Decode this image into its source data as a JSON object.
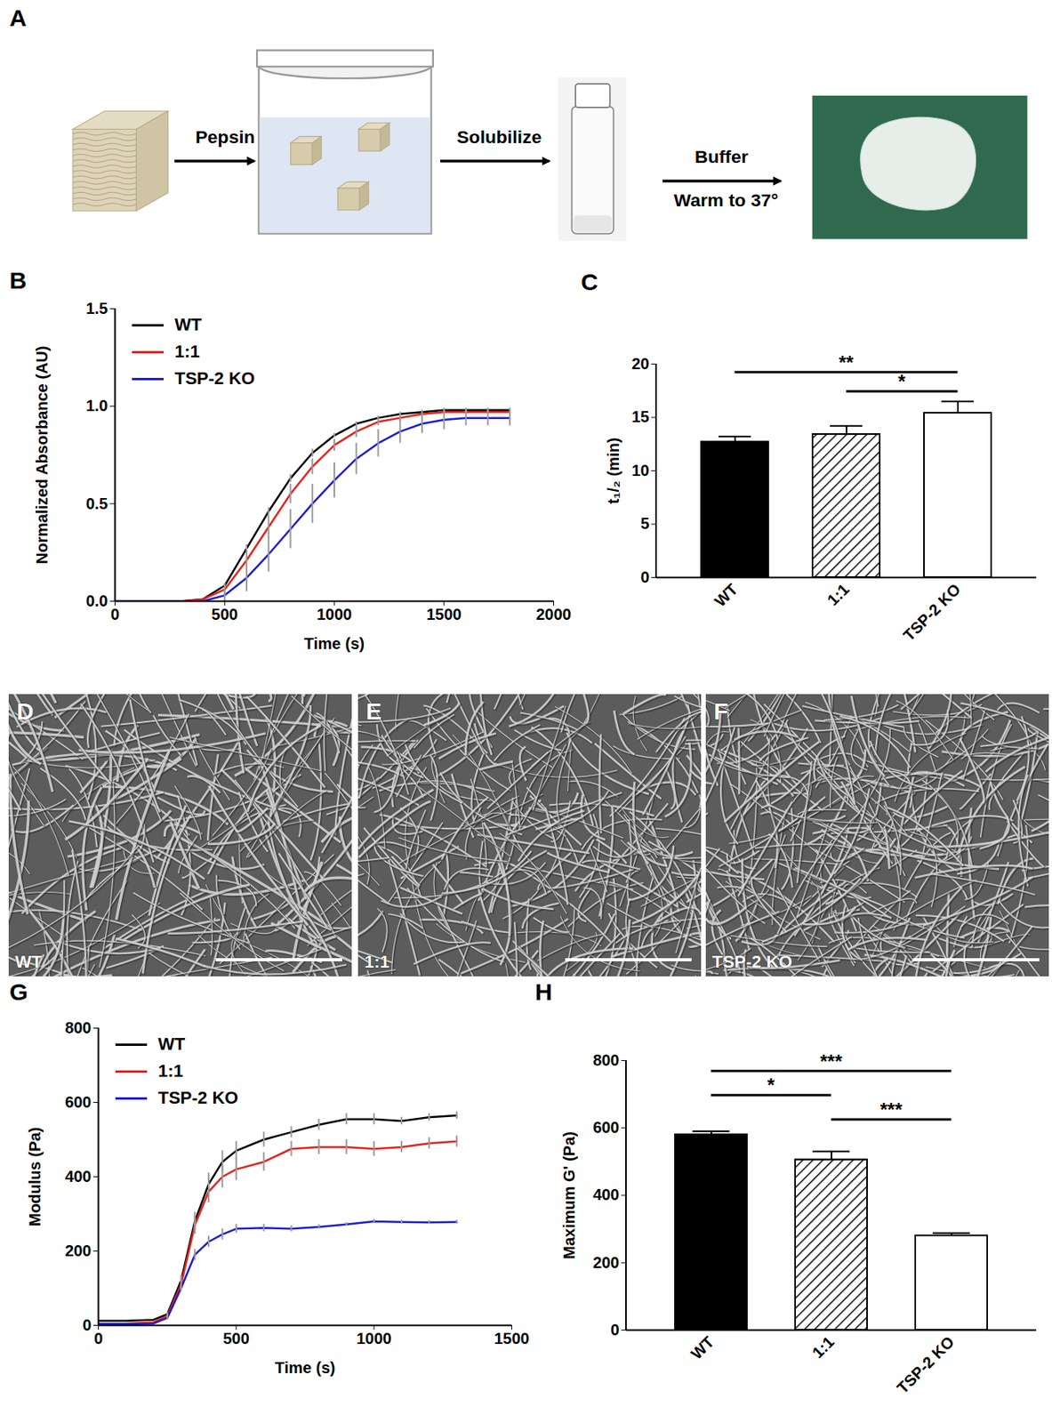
{
  "schematic": {
    "panel": "A",
    "steps": [
      {
        "above": "Pepsin"
      },
      {
        "above": "Solubilize"
      },
      {
        "above": "Buffer",
        "below": "Warm to 37°"
      }
    ]
  },
  "chart_data": [
    {
      "panel": "B",
      "type": "line",
      "x_label": "Time (s)",
      "y_label": "Normalized Absorbance (AU)",
      "x": [
        0,
        100,
        200,
        300,
        400,
        500,
        600,
        700,
        800,
        900,
        1000,
        1100,
        1200,
        1300,
        1400,
        1500,
        1600,
        1700,
        1800
      ],
      "series": [
        {
          "name": "WT",
          "color": "#000000",
          "values": [
            0,
            0,
            0,
            0,
            0.01,
            0.08,
            0.27,
            0.46,
            0.63,
            0.76,
            0.85,
            0.91,
            0.94,
            0.96,
            0.97,
            0.98,
            0.98,
            0.98,
            0.98
          ],
          "errors": [
            0,
            0,
            0,
            0,
            0,
            0.01,
            0.02,
            0.02,
            0.02,
            0.02,
            0.01,
            0.01,
            0.01,
            0.01,
            0.01,
            0.01,
            0.01,
            0.01,
            0.01
          ]
        },
        {
          "name": "1:1",
          "color": "#e8221b",
          "values": [
            0,
            0,
            0,
            0,
            0.01,
            0.06,
            0.21,
            0.38,
            0.55,
            0.69,
            0.8,
            0.87,
            0.92,
            0.94,
            0.96,
            0.97,
            0.97,
            0.97,
            0.97
          ],
          "errors": [
            0,
            0,
            0,
            0,
            0,
            0.03,
            0.06,
            0.06,
            0.05,
            0.04,
            0.03,
            0.03,
            0.02,
            0.02,
            0.01,
            0.01,
            0.01,
            0.01,
            0.01
          ]
        },
        {
          "name": "TSP-2 KO",
          "color": "#1c1cd6",
          "values": [
            0,
            0,
            0,
            0,
            0,
            0.03,
            0.12,
            0.24,
            0.37,
            0.5,
            0.62,
            0.73,
            0.81,
            0.87,
            0.91,
            0.93,
            0.94,
            0.94,
            0.94
          ],
          "errors": [
            0,
            0,
            0,
            0,
            0,
            0.03,
            0.07,
            0.09,
            0.1,
            0.1,
            0.09,
            0.08,
            0.07,
            0.06,
            0.05,
            0.05,
            0.04,
            0.04,
            0.04
          ]
        }
      ],
      "xlim": [
        0,
        2000
      ],
      "xticks": [
        0,
        500,
        1000,
        1500,
        2000
      ],
      "ylim": [
        0,
        1.5
      ],
      "yticks": [
        {
          "value": 0,
          "label": "0.0"
        },
        {
          "value": 0.5,
          "label": "0.5"
        },
        {
          "value": 1,
          "label": "1.0"
        },
        {
          "value": 1.5,
          "label": "1.5"
        }
      ],
      "legend": "top-left",
      "grid": false
    },
    {
      "panel": "C",
      "type": "bar",
      "y_label": "t₁/₂ (min)",
      "categories": [
        "WT",
        "1:1",
        "TSP-2 KO"
      ],
      "values": [
        12.7,
        13.4,
        15.4
      ],
      "errors": [
        0.5,
        0.8,
        1.1
      ],
      "colors": [
        "#000000",
        "#ffffff",
        "#ffffff"
      ],
      "ylim": [
        0,
        20
      ],
      "yticks": [
        0,
        5,
        10,
        15,
        20
      ],
      "significance": [
        {
          "from": "WT",
          "to": "TSP-2 KO",
          "label": "**"
        },
        {
          "from": "1:1",
          "to": "TSP-2 KO",
          "label": "*"
        }
      ],
      "grid": false
    },
    {
      "panel": "G",
      "type": "line",
      "x_label": "Time (s)",
      "y_label": "Modulus (Pa)",
      "x": [
        0,
        100,
        200,
        250,
        300,
        350,
        400,
        450,
        500,
        600,
        700,
        800,
        900,
        1000,
        1100,
        1200,
        1300
      ],
      "series": [
        {
          "name": "WT",
          "color": "#000000",
          "values": [
            12,
            12,
            15,
            30,
            120,
            280,
            380,
            440,
            470,
            500,
            520,
            540,
            555,
            555,
            550,
            560,
            565
          ],
          "errors": [
            0,
            0,
            0,
            5,
            15,
            25,
            30,
            30,
            25,
            20,
            15,
            15,
            15,
            15,
            10,
            10,
            10
          ]
        },
        {
          "name": "1:1",
          "color": "#e8221b",
          "values": [
            5,
            5,
            8,
            25,
            110,
            270,
            360,
            400,
            420,
            440,
            475,
            480,
            480,
            475,
            480,
            490,
            495
          ],
          "errors": [
            0,
            0,
            0,
            5,
            15,
            25,
            30,
            30,
            30,
            25,
            20,
            20,
            20,
            20,
            15,
            15,
            15
          ]
        },
        {
          "name": "TSP-2 KO",
          "color": "#1c1cd6",
          "values": [
            3,
            3,
            5,
            20,
            100,
            190,
            225,
            245,
            260,
            262,
            260,
            265,
            272,
            280,
            278,
            277,
            278
          ],
          "errors": [
            0,
            0,
            0,
            5,
            10,
            15,
            15,
            15,
            12,
            10,
            8,
            6,
            5,
            5,
            5,
            5,
            5
          ]
        }
      ],
      "xlim": [
        0,
        1500
      ],
      "xticks": [
        0,
        500,
        1000,
        1500
      ],
      "ylim": [
        0,
        800
      ],
      "yticks": [
        0,
        200,
        400,
        600,
        800
      ],
      "legend": "top-left",
      "grid": false
    },
    {
      "panel": "H",
      "type": "bar",
      "y_label": "Maximum G' (Pa)",
      "categories": [
        "WT",
        "1:1",
        "TSP-2 KO"
      ],
      "values": [
        580,
        505,
        280
      ],
      "errors": [
        10,
        25,
        8
      ],
      "colors": [
        "#000000",
        "#ffffff",
        "#ffffff"
      ],
      "ylim": [
        0,
        800
      ],
      "yticks": [
        0,
        200,
        400,
        600,
        800
      ],
      "significance": [
        {
          "from": "WT",
          "to": "TSP-2 KO",
          "label": "***"
        },
        {
          "from": "WT",
          "to": "1:1",
          "label": "*"
        },
        {
          "from": "1:1",
          "to": "TSP-2 KO",
          "label": "***"
        }
      ],
      "grid": false
    }
  ],
  "micrographs": [
    {
      "panel": "D",
      "label": "WT"
    },
    {
      "panel": "E",
      "label": "1:1"
    },
    {
      "panel": "F",
      "label": "TSP-2 KO"
    }
  ]
}
